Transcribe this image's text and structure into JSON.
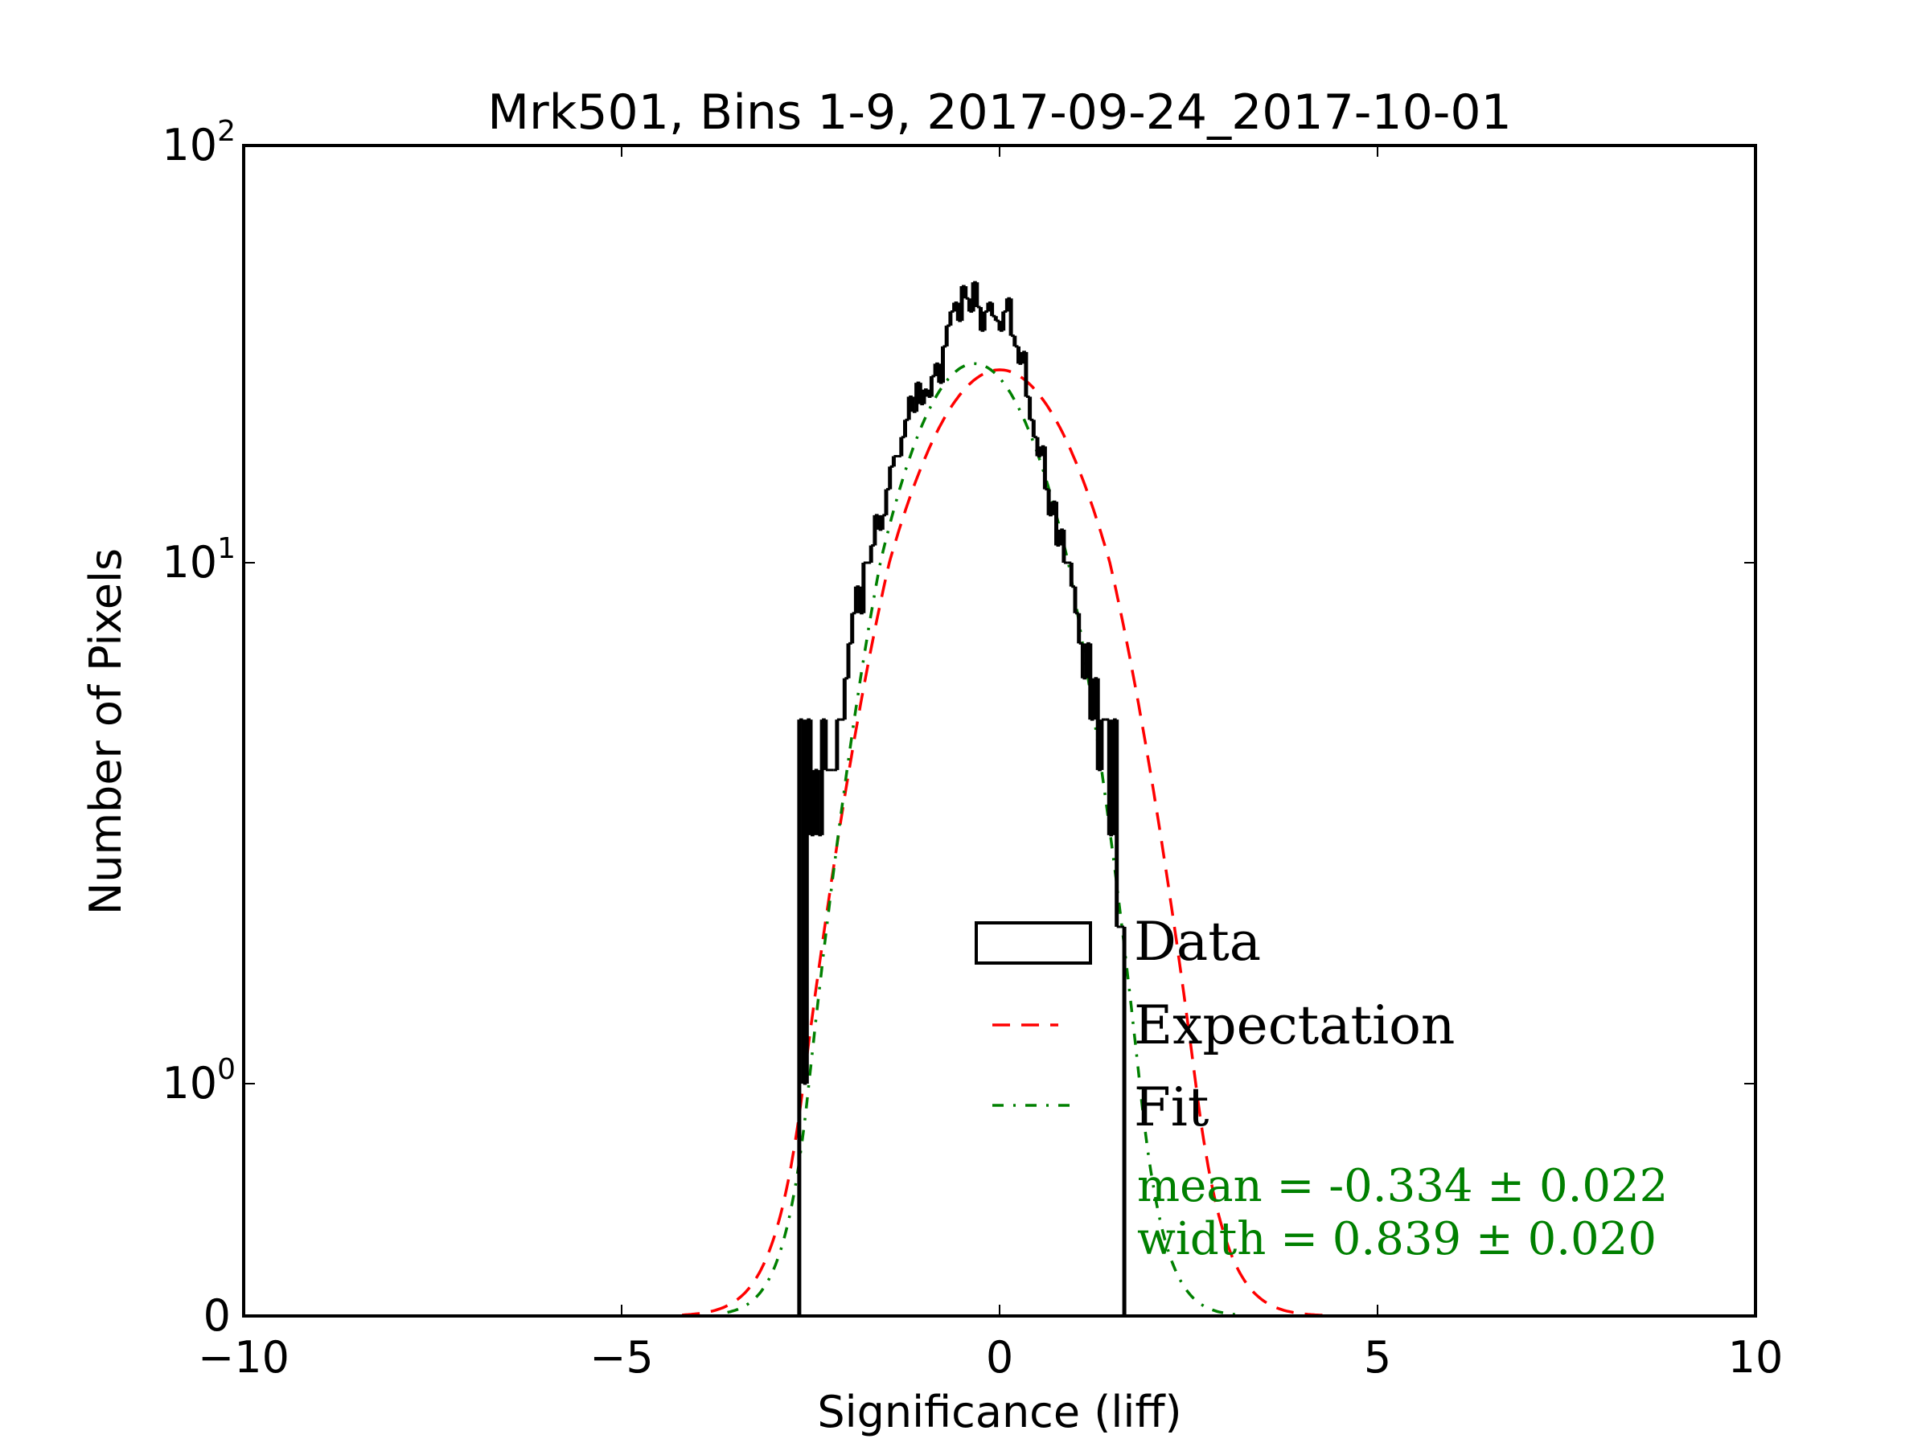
{
  "chart_data": {
    "type": "histogram",
    "title": "Mrk501, Bins 1-9, 2017-09-24_2017-10-01",
    "xlabel": "Significance (liff)",
    "ylabel": "Number of Pixels",
    "xlim": [
      -10,
      10
    ],
    "yscale": "symlog",
    "ylim": [
      0,
      100
    ],
    "x_ticks": [
      -10,
      -5,
      0,
      5,
      10
    ],
    "x_tick_labels": [
      "−10",
      "−5",
      "0",
      "5",
      "10"
    ],
    "y_ticks": [
      0,
      1,
      10,
      100
    ],
    "y_tick_labels": [
      {
        "base": "0",
        "exp": ""
      },
      {
        "base": "10",
        "exp": "0"
      },
      {
        "base": "10",
        "exp": "1"
      },
      {
        "base": "10",
        "exp": "2"
      }
    ],
    "legend": {
      "position": "lower-right",
      "entries": [
        {
          "label": "Data",
          "style": "step",
          "color": "#000000"
        },
        {
          "label": "Expectation",
          "style": "dashed",
          "color": "#ff0000"
        },
        {
          "label": "Fit",
          "style": "dash-dot",
          "color": "#008000"
        }
      ]
    },
    "annotations": [
      "mean = -0.334 ± 0.022",
      "width = 0.839 ± 0.020"
    ],
    "annotation_color": "#008000",
    "histogram": {
      "name": "Data",
      "bin_start": -2.65,
      "bin_width": 0.05,
      "counts": [
        5,
        1,
        5,
        3,
        4,
        3,
        5,
        4,
        4,
        4,
        5,
        5,
        6,
        7,
        8,
        9,
        8,
        10,
        10,
        11,
        13,
        12,
        13,
        15,
        17,
        18,
        18,
        20,
        22,
        25,
        23,
        27,
        24,
        26,
        25,
        28,
        30,
        27,
        33,
        37,
        40,
        42,
        38,
        46,
        43,
        40,
        47,
        41,
        36,
        40,
        42,
        39,
        38,
        36,
        40,
        43,
        35,
        33,
        30,
        32,
        25,
        22,
        20,
        18,
        19,
        15,
        13,
        14,
        11,
        12,
        10,
        10,
        9,
        8,
        7,
        6,
        7,
        5,
        6,
        4,
        5,
        5,
        3,
        5,
        2,
        2
      ]
    },
    "series": [
      {
        "name": "Expectation",
        "type": "gaussian",
        "mean": 0.0,
        "sigma": 1.0,
        "amplitude": 29,
        "x_range": [
          -4.2,
          4.3
        ],
        "color": "#ff0000"
      },
      {
        "name": "Fit",
        "type": "gaussian",
        "mean": -0.334,
        "sigma": 0.839,
        "amplitude": 30,
        "x_range": [
          -3.6,
          3.2
        ],
        "color": "#008000"
      }
    ]
  }
}
